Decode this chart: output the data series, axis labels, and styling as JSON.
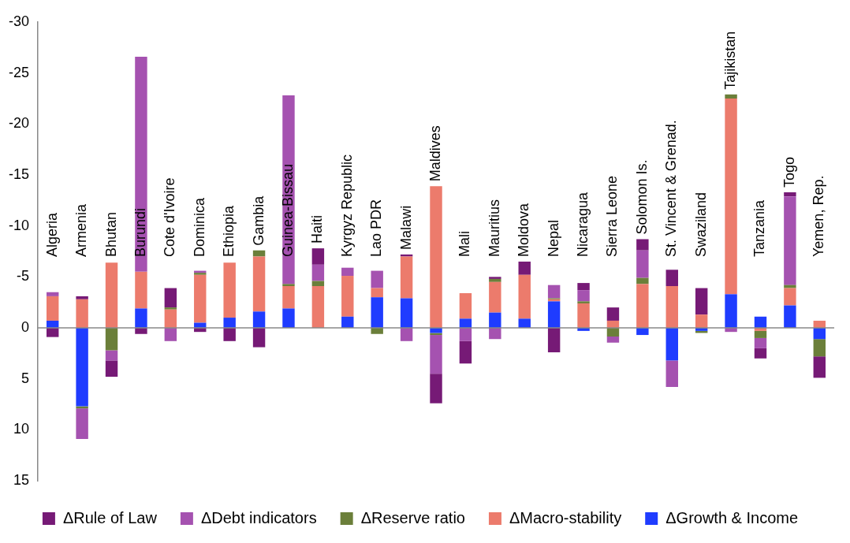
{
  "chart_data": {
    "type": "bar",
    "stacked": true,
    "categories": [
      "Algeria",
      "Armenia",
      "Bhutan",
      "Burundi",
      "Cote d'Ivoire",
      "Dominica",
      "Ethiopia",
      "Gambia",
      "Guinea-Bissau",
      "Haiti",
      "Kyrgyz Republic",
      "Lao PDR",
      "Malawi",
      "Maldives",
      "Mali",
      "Mauritius",
      "Moldova",
      "Nepal",
      "Nicaragua",
      "Sierra Leone",
      "Solomon Is.",
      "St. Vincent & Grenad.",
      "Swaziland",
      "Tajikistan",
      "Tanzania",
      "Togo",
      "Yemen, Rep."
    ],
    "series": [
      {
        "name": "ΔGrowth & Income",
        "color": "#1f3cff",
        "values": [
          -0.7,
          7.7,
          0,
          -1.9,
          0,
          -0.5,
          -1.0,
          -1.6,
          -1.9,
          0,
          -1.1,
          -3.0,
          -2.9,
          0.5,
          -0.9,
          -1.5,
          -0.9,
          -2.6,
          0.3,
          0,
          0.7,
          3.2,
          0.3,
          -3.3,
          -1.1,
          -2.2,
          1.1
        ]
      },
      {
        "name": "ΔMacro-stability",
        "color": "#ec7b6c",
        "values": [
          -2.4,
          -2.8,
          -6.4,
          -3.6,
          -1.8,
          -4.7,
          -5.4,
          -5.4,
          -2.2,
          -4.1,
          -4.0,
          -0.9,
          -4.1,
          -13.9,
          -2.5,
          -3.0,
          -4.3,
          -0.2,
          -2.4,
          -0.7,
          -4.3,
          -4.1,
          -1.3,
          -19.2,
          0.3,
          -1.7,
          -0.7
        ]
      },
      {
        "name": "ΔReserve ratio",
        "color": "#6b7f3a",
        "values": [
          0,
          0.2,
          2.2,
          0,
          -0.2,
          -0.2,
          0,
          -0.6,
          -0.2,
          -0.5,
          0,
          0.6,
          0,
          0.2,
          0,
          -0.3,
          0,
          -0.1,
          -0.2,
          0.85,
          -0.6,
          0,
          0.2,
          -0.4,
          0.7,
          -0.3,
          1.7
        ]
      },
      {
        "name": "ΔDebt indicators",
        "color": "#a552b0",
        "values": [
          -0.4,
          3.0,
          1.0,
          -21.1,
          1.3,
          -0.2,
          0,
          0,
          -18.5,
          -1.6,
          -0.8,
          -1.7,
          1.3,
          3.8,
          1.3,
          1.1,
          0,
          -1.3,
          -1.1,
          0.6,
          -2.7,
          2.6,
          0,
          0.4,
          1.0,
          -8.7,
          0
        ]
      },
      {
        "name": "ΔRule of Law",
        "color": "#761a76",
        "values": [
          0.9,
          -0.3,
          1.6,
          0.6,
          -1.9,
          0.4,
          1.3,
          1.9,
          0,
          -1.6,
          0,
          0,
          -0.2,
          2.9,
          2.2,
          -0.2,
          -1.3,
          2.4,
          -0.7,
          -1.3,
          -1.1,
          -1.6,
          -2.6,
          0,
          1.0,
          -0.4,
          2.1
        ]
      }
    ],
    "ylim": [
      15,
      -30
    ],
    "yticks": [
      -30,
      -25,
      -20,
      -15,
      -10,
      -5,
      0,
      5,
      10,
      15
    ],
    "grid": false,
    "legend": "bottom",
    "ref_lines": [
      {
        "axis": "y",
        "value": 0,
        "color": "#888888"
      }
    ]
  }
}
